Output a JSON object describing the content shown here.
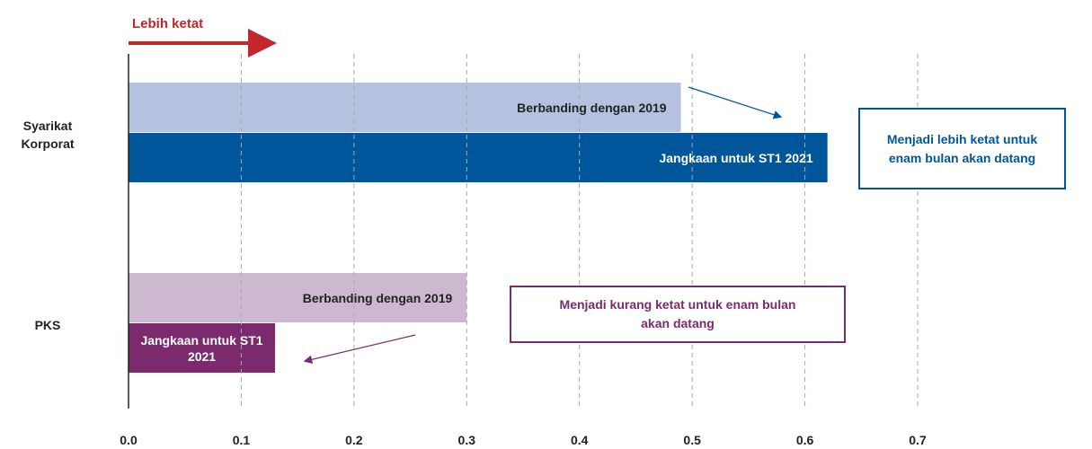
{
  "chart_data": {
    "type": "bar",
    "orientation": "horizontal",
    "categories": [
      "Syarikat Korporat",
      "PKS"
    ],
    "series": [
      {
        "name": "Berbanding dengan 2019",
        "colors": [
          "#b4c1df",
          "#cdb9cf"
        ],
        "values": [
          0.49,
          0.3
        ]
      },
      {
        "name": "Jangkaan untuk ST1 2021",
        "colors": [
          "#00569b",
          "#7b2a6e"
        ],
        "values": [
          0.62,
          0.13
        ]
      }
    ],
    "xlim": [
      0,
      0.7
    ],
    "xticks": [
      {
        "value": 0,
        "label": "0.0"
      },
      0.1,
      0.2,
      0.3,
      0.4,
      0.5,
      0.6,
      0.7
    ],
    "grid": true,
    "annotations": {
      "direction": "Lebih ketat",
      "corporate_note": "Menjadi lebih ketat untuk enam bulan akan datang",
      "sme_note": "Menjadi kurang ketat untuk enam bulan akan datang"
    }
  }
}
